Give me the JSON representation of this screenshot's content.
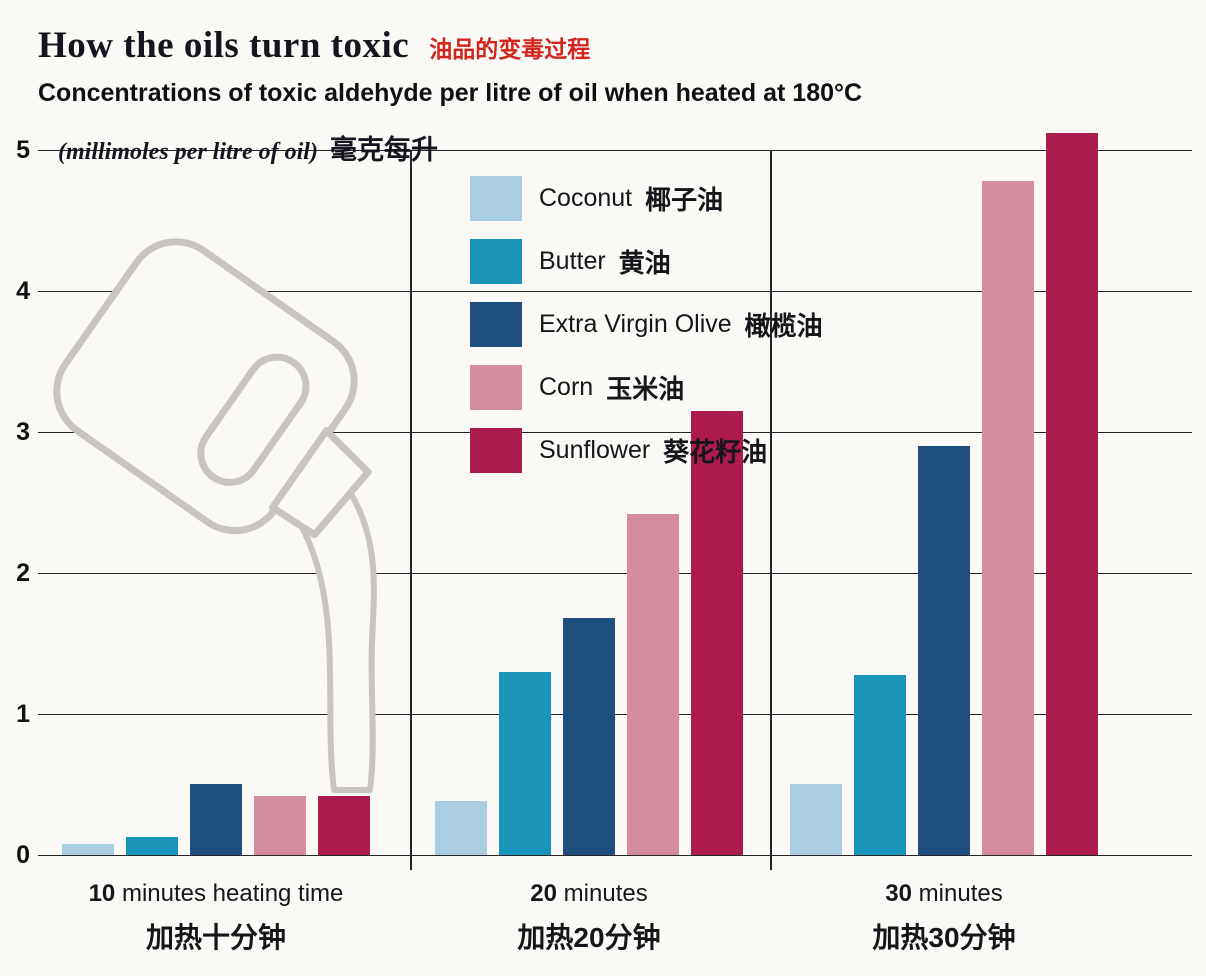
{
  "page": {
    "background": "#fbf9f6"
  },
  "header": {
    "title_zh": "油品的变毒过程"
  },
  "axis_note": {
    "unit_en": "(millimoles per litre of oil)",
    "unit_zh": "毫克每升"
  },
  "chart_data": {
    "type": "bar",
    "title": "How the oils turn toxic",
    "subtitle": "Concentrations of toxic aldehyde per litre of oil when heated at 180°C",
    "ylabel": "millimoles per litre of oil",
    "ylim": [
      0,
      5
    ],
    "yticks": [
      0,
      1,
      2,
      3,
      4,
      5
    ],
    "grid": true,
    "legend_position": "top-center-inside",
    "categories": [
      {
        "num": "10",
        "label": "minutes heating time",
        "zh": "加热十分钟"
      },
      {
        "num": "20",
        "label": "minutes",
        "zh": "加热20分钟"
      },
      {
        "num": "30",
        "label": "minutes",
        "zh": "加热30分钟"
      }
    ],
    "series": [
      {
        "name": "Coconut",
        "name_zh": "椰子油",
        "color": "#a9cee3",
        "values": [
          0.08,
          0.38,
          0.5
        ]
      },
      {
        "name": "Butter",
        "name_zh": "黄油",
        "color": "#1a93b8",
        "values": [
          0.13,
          1.3,
          1.28
        ]
      },
      {
        "name": "Extra Virgin Olive",
        "name_zh": "橄榄油",
        "color": "#1f4f7c",
        "values": [
          0.5,
          1.68,
          2.9
        ]
      },
      {
        "name": "Corn",
        "name_zh": "玉米油",
        "color": "#d48d9e",
        "values": [
          0.42,
          2.42,
          4.78
        ]
      },
      {
        "name": "Sunflower",
        "name_zh": "葵花籽油",
        "color": "#ac1a4e",
        "values": [
          0.42,
          3.15,
          5.12
        ]
      }
    ]
  }
}
